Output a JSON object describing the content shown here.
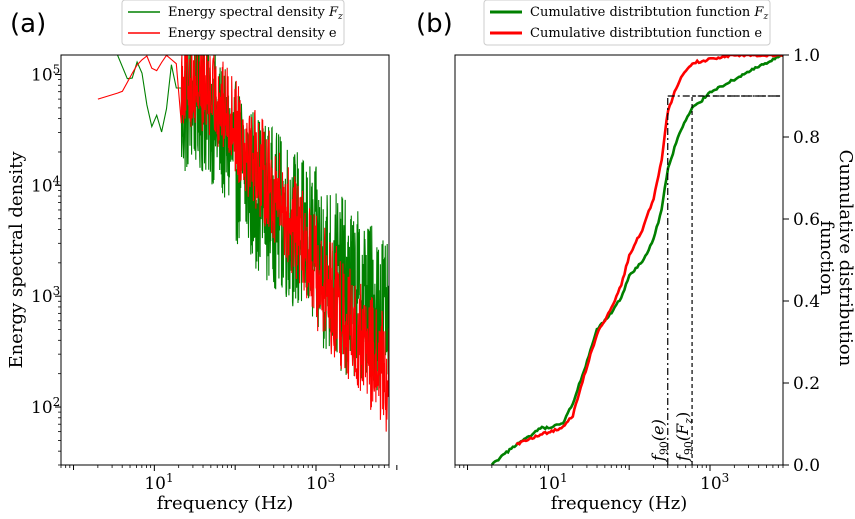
{
  "colors": {
    "green": "#008000",
    "red": "#ff0000",
    "black": "#000000"
  },
  "chart_data": [
    {
      "panel_label": "(a)",
      "type": "line",
      "xscale": "log",
      "yscale": "log",
      "xlabel": "frequency (Hz)",
      "ylabel": "Energy spectral density",
      "xlim": [
        0.7,
        8000
      ],
      "ylim": [
        30,
        150000
      ],
      "x_ticks": [
        {
          "value": 10,
          "base": "10",
          "exp": "1"
        },
        {
          "value": 1000,
          "base": "10",
          "exp": "3"
        }
      ],
      "y_ticks": [
        {
          "value": 100,
          "base": "10",
          "exp": "2"
        },
        {
          "value": 1000,
          "base": "10",
          "exp": "3"
        },
        {
          "value": 10000,
          "base": "10",
          "exp": "4"
        },
        {
          "value": 100000,
          "base": "10",
          "exp": "5"
        }
      ],
      "legend": {
        "placement": "above",
        "entries": [
          {
            "text": "Energy spectral density ",
            "math": "F",
            "sub": "z",
            "color": "#008000"
          },
          {
            "text": "Energy spectral density e",
            "math": "",
            "sub": "",
            "color": "#ff0000"
          }
        ]
      },
      "series": [
        {
          "color": "#008000",
          "points": [
            [
              2,
              150000
            ],
            [
              3.5,
              150000
            ],
            [
              5,
              80000
            ],
            [
              6.5,
              150000
            ],
            [
              9,
              32000
            ],
            [
              11,
              45000
            ],
            [
              13,
              25000
            ],
            [
              16,
              130000
            ],
            [
              20,
              60000
            ],
            [
              30,
              100000
            ],
            [
              50,
              70000
            ],
            [
              80,
              40000
            ],
            [
              150,
              20000
            ],
            [
              300,
              12000
            ],
            [
              600,
              7000
            ],
            [
              1200,
              4000
            ],
            [
              2500,
              2200
            ],
            [
              5000,
              1500
            ],
            [
              8000,
              1200
            ]
          ],
          "band": [
            [
              20,
              0.4,
              2.2
            ],
            [
              100,
              0.15,
              2.6
            ],
            [
              400,
              0.1,
              2.8
            ],
            [
              1000,
              0.1,
              3.0
            ],
            [
              3000,
              0.08,
              3.2
            ],
            [
              8000,
              0.1,
              3.2
            ]
          ]
        },
        {
          "color": "#ff0000",
          "points": [
            [
              2,
              60000
            ],
            [
              4,
              70000
            ],
            [
              6,
              120000
            ],
            [
              8,
              150000
            ],
            [
              10,
              100000
            ],
            [
              14,
              150000
            ],
            [
              20,
              120000
            ],
            [
              40,
              100000
            ],
            [
              80,
              60000
            ],
            [
              150,
              30000
            ],
            [
              300,
              12000
            ],
            [
              700,
              4000
            ],
            [
              1500,
              1500
            ],
            [
              3000,
              700
            ],
            [
              6000,
              350
            ],
            [
              8000,
              280
            ]
          ],
          "band": [
            [
              20,
              0.6,
              1.8
            ],
            [
              100,
              0.3,
              2.0
            ],
            [
              400,
              0.25,
              2.2
            ],
            [
              1000,
              0.25,
              2.2
            ],
            [
              3000,
              0.2,
              2.3
            ],
            [
              8000,
              0.2,
              2.3
            ]
          ]
        }
      ]
    },
    {
      "panel_label": "(b)",
      "type": "line",
      "xscale": "log",
      "yscale": "linear",
      "xlabel": "frequency (Hz)",
      "ylabel_lines": [
        "Cumulative distribution",
        "function"
      ],
      "xlim": [
        0.7,
        8000
      ],
      "ylim": [
        0,
        1.0
      ],
      "x_ticks": [
        {
          "value": 10,
          "base": "10",
          "exp": "1"
        },
        {
          "value": 1000,
          "base": "10",
          "exp": "3"
        }
      ],
      "y_ticks": [
        "0.0",
        "0.2",
        "0.4",
        "0.6",
        "0.8",
        "1.0"
      ],
      "legend": {
        "placement": "above",
        "entries": [
          {
            "text": "Cumulative distribtution function ",
            "math": "F",
            "sub": "z",
            "color": "#008000"
          },
          {
            "text": "Cumulative distribtution function e",
            "math": "",
            "sub": "",
            "color": "#ff0000"
          }
        ]
      },
      "series": [
        {
          "name": "Fz",
          "color": "#008000",
          "points": [
            [
              2,
              0
            ],
            [
              4,
              0.05
            ],
            [
              6,
              0.07
            ],
            [
              8,
              0.09
            ],
            [
              10,
              0.09
            ],
            [
              15,
              0.1
            ],
            [
              20,
              0.15
            ],
            [
              30,
              0.25
            ],
            [
              40,
              0.33
            ],
            [
              60,
              0.37
            ],
            [
              80,
              0.41
            ],
            [
              100,
              0.46
            ],
            [
              150,
              0.5
            ],
            [
              200,
              0.55
            ],
            [
              250,
              0.62
            ],
            [
              300,
              0.72
            ],
            [
              400,
              0.8
            ],
            [
              500,
              0.84
            ],
            [
              600,
              0.87
            ],
            [
              800,
              0.89
            ],
            [
              1000,
              0.91
            ],
            [
              2000,
              0.94
            ],
            [
              3000,
              0.96
            ],
            [
              5000,
              0.98
            ],
            [
              8000,
              1.0
            ]
          ]
        },
        {
          "name": "e",
          "color": "#ff0000",
          "points": [
            [
              4,
              0.05
            ],
            [
              7,
              0.07
            ],
            [
              10,
              0.08
            ],
            [
              15,
              0.09
            ],
            [
              20,
              0.12
            ],
            [
              30,
              0.24
            ],
            [
              40,
              0.32
            ],
            [
              60,
              0.38
            ],
            [
              80,
              0.44
            ],
            [
              100,
              0.51
            ],
            [
              150,
              0.58
            ],
            [
              200,
              0.65
            ],
            [
              250,
              0.74
            ],
            [
              300,
              0.86
            ],
            [
              350,
              0.9
            ],
            [
              450,
              0.95
            ],
            [
              600,
              0.98
            ],
            [
              1000,
              0.99
            ],
            [
              2000,
              1.0
            ],
            [
              8000,
              1.0
            ]
          ]
        }
      ],
      "annotations": [
        {
          "x": 300,
          "y": 0.9,
          "style": "dashdot",
          "label_base": "f",
          "label_sub": "90",
          "label_arg": "(e)"
        },
        {
          "x": 600,
          "y": 0.9,
          "style": "dashed",
          "label_base": "f",
          "label_sub": "90",
          "label_arg": "(F",
          "label_arg_sub": "z",
          "label_close": ")"
        }
      ]
    }
  ]
}
